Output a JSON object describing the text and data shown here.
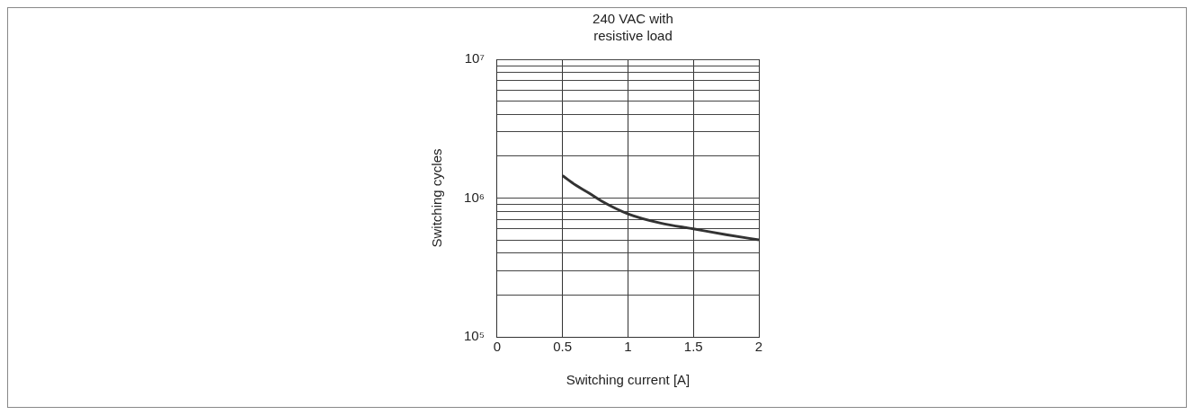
{
  "chart_data": {
    "type": "line",
    "title": "240 VAC with resistive load",
    "xlabel": "Switching current [A]",
    "ylabel": "Switching cycles",
    "log": "y",
    "grid": true,
    "legend": false,
    "marker": "none",
    "line_style": "solid",
    "xlim": [
      0,
      2
    ],
    "xticks": [
      0,
      0.5,
      1,
      1.5,
      2
    ],
    "ylim": [
      100000,
      10000000
    ],
    "yticks": [
      {
        "value": 100000,
        "label": "10⁵"
      },
      {
        "value": 200000,
        "label": null
      },
      {
        "value": 300000,
        "label": null
      },
      {
        "value": 400000,
        "label": null
      },
      {
        "value": 500000,
        "label": null
      },
      {
        "value": 600000,
        "label": null
      },
      {
        "value": 700000,
        "label": null
      },
      {
        "value": 800000,
        "label": null
      },
      {
        "value": 900000,
        "label": null
      },
      {
        "value": 1000000,
        "label": "10⁶"
      },
      {
        "value": 2000000,
        "label": null
      },
      {
        "value": 3000000,
        "label": null
      },
      {
        "value": 4000000,
        "label": null
      },
      {
        "value": 5000000,
        "label": null
      },
      {
        "value": 6000000,
        "label": null
      },
      {
        "value": 7000000,
        "label": null
      },
      {
        "value": 8000000,
        "label": null
      },
      {
        "value": 9000000,
        "label": null
      },
      {
        "value": 10000000,
        "label": "10⁷"
      }
    ],
    "series": [
      {
        "color": "#333333",
        "x": [
          0.5,
          0.6,
          0.7,
          0.8,
          1,
          1.25,
          1.5,
          1.75,
          2
        ],
        "values": [
          1450000,
          1240000,
          1090000,
          950000,
          770000,
          660000,
          600000,
          545000,
          500000
        ]
      }
    ]
  }
}
